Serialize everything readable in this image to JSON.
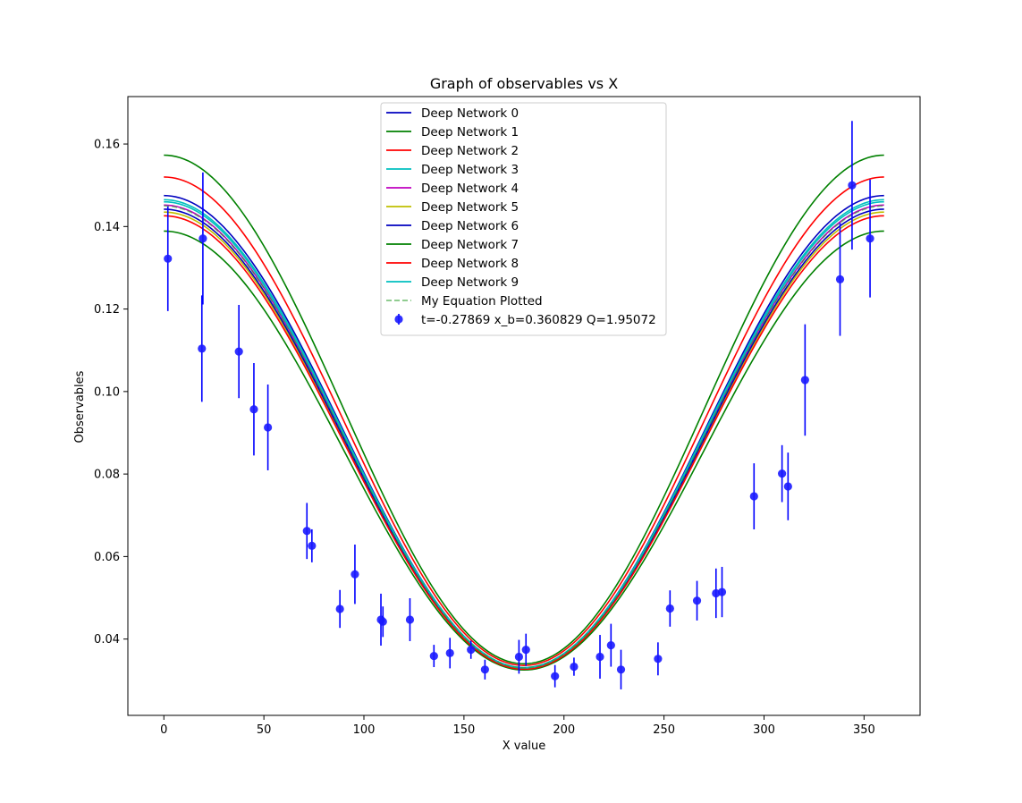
{
  "chart_data": {
    "type": "line",
    "title": "Graph of observables vs X",
    "xlabel": "X value",
    "ylabel": "Observables",
    "xlim": [
      -18,
      378
    ],
    "ylim": [
      0.0215,
      0.1715
    ],
    "xticks": [
      0,
      50,
      100,
      150,
      200,
      250,
      300,
      350
    ],
    "yticks": [
      0.04,
      0.06,
      0.08,
      0.1,
      0.12,
      0.14,
      0.16
    ],
    "ytick_labels": [
      "0.04",
      "0.06",
      "0.08",
      "0.10",
      "0.12",
      "0.14",
      "0.16"
    ],
    "legend_position": "upper center",
    "series": [
      {
        "name": "Deep Network 0",
        "color": "#0000bf",
        "ends": 0.1475,
        "min": 0.033
      },
      {
        "name": "Deep Network 1",
        "color": "#008000",
        "ends": 0.1573,
        "min": 0.034
      },
      {
        "name": "Deep Network 2",
        "color": "#ff0000",
        "ends": 0.152,
        "min": 0.0336
      },
      {
        "name": "Deep Network 3",
        "color": "#00bfbf",
        "ends": 0.1465,
        "min": 0.0331
      },
      {
        "name": "Deep Network 4",
        "color": "#bf00bf",
        "ends": 0.1452,
        "min": 0.033
      },
      {
        "name": "Deep Network 5",
        "color": "#bfbf00",
        "ends": 0.1435,
        "min": 0.0329
      },
      {
        "name": "Deep Network 6",
        "color": "#0000bf",
        "ends": 0.1442,
        "min": 0.0329
      },
      {
        "name": "Deep Network 7",
        "color": "#008000",
        "ends": 0.1389,
        "min": 0.0325
      },
      {
        "name": "Deep Network 8",
        "color": "#ff0000",
        "ends": 0.1426,
        "min": 0.0327
      },
      {
        "name": "Deep Network 9",
        "color": "#00bfbf",
        "ends": 0.146,
        "min": 0.033
      }
    ],
    "equation_series": {
      "name": "My Equation Plotted",
      "color": "#2ca02c",
      "style": "dashed",
      "ends": 0.145,
      "min": 0.033
    },
    "points_series": {
      "name": "t=-0.27869 x_b=0.360829 Q=1.95072",
      "color": "#1a1aff",
      "x": [
        2,
        19,
        19.5,
        37.5,
        45,
        52,
        71.5,
        74,
        88,
        95.5,
        108.5,
        109.5,
        123,
        135,
        143,
        153.5,
        160.5,
        177.5,
        181,
        195.5,
        205,
        218,
        223.5,
        228.5,
        247,
        253,
        266.5,
        276,
        279,
        295,
        309,
        312,
        320.5,
        338,
        344,
        353
      ],
      "y": [
        0.1322,
        0.1104,
        0.1371,
        0.1097,
        0.0957,
        0.0913,
        0.0662,
        0.0626,
        0.0473,
        0.0557,
        0.0447,
        0.0442,
        0.0447,
        0.0359,
        0.0366,
        0.0374,
        0.0326,
        0.0357,
        0.0374,
        0.031,
        0.0333,
        0.0357,
        0.0385,
        0.0326,
        0.0352,
        0.0474,
        0.0493,
        0.0511,
        0.0514,
        0.0746,
        0.0801,
        0.077,
        0.1028,
        0.1272,
        0.15,
        0.1371
      ],
      "err": [
        0.0127,
        0.0129,
        0.016,
        0.0113,
        0.0112,
        0.0104,
        0.0068,
        0.004,
        0.0046,
        0.0072,
        0.0063,
        0.0037,
        0.0052,
        0.0027,
        0.0037,
        0.0022,
        0.0024,
        0.0041,
        0.0039,
        0.0027,
        0.0022,
        0.0053,
        0.0052,
        0.0048,
        0.004,
        0.0044,
        0.0048,
        0.006,
        0.0061,
        0.008,
        0.0069,
        0.0082,
        0.0135,
        0.0137,
        0.0156,
        0.0143
      ]
    }
  }
}
